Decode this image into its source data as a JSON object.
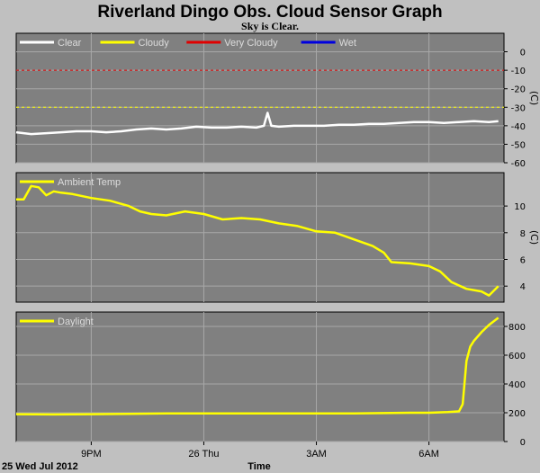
{
  "title": "Riverland Dingo Obs. Cloud Sensor Graph",
  "subtitle": "Sky is Clear.",
  "footer": {
    "date": "25 Wed Jul 2012",
    "xlabel": "Time"
  },
  "x_ticks": [
    {
      "label": "9PM",
      "t": 2.0
    },
    {
      "label": "26 Thu",
      "t": 5.0
    },
    {
      "label": "3AM",
      "t": 8.0
    },
    {
      "label": "6AM",
      "t": 11.0
    }
  ],
  "colors": {
    "plot_bg": "#808080",
    "grid": "#a8a8a8",
    "clear": "#ffffff",
    "cloudy": "#ffff00",
    "very_cloudy": "#e00000",
    "wet": "#0000e0"
  },
  "chart_data": [
    {
      "type": "line",
      "ylabel": "(C)",
      "ylim": [
        -60,
        10
      ],
      "yticks": [
        0,
        -10,
        -20,
        -30,
        -40,
        -50,
        -60
      ],
      "thresholds": [
        {
          "name": "Very Cloudy",
          "y": -10,
          "color": "#e00000"
        },
        {
          "name": "Cloudy",
          "y": -30,
          "color": "#ffff00"
        }
      ],
      "legend": [
        {
          "name": "Clear",
          "color": "#ffffff"
        },
        {
          "name": "Cloudy",
          "color": "#ffff00"
        },
        {
          "name": "Very Cloudy",
          "color": "#e00000"
        },
        {
          "name": "Wet",
          "color": "#0000e0"
        }
      ],
      "series": [
        {
          "name": "Clear",
          "color": "#ffffff",
          "x": [
            0.0,
            0.4,
            0.8,
            1.2,
            1.6,
            2.0,
            2.4,
            2.8,
            3.2,
            3.6,
            4.0,
            4.4,
            4.8,
            5.2,
            5.6,
            6.0,
            6.4,
            6.6,
            6.7,
            6.8,
            7.0,
            7.4,
            7.8,
            8.2,
            8.6,
            9.0,
            9.4,
            9.8,
            10.2,
            10.6,
            11.0,
            11.4,
            11.8,
            12.2,
            12.6,
            12.85
          ],
          "y": [
            -43.5,
            -44.5,
            -44,
            -43.5,
            -43,
            -43,
            -43.5,
            -43,
            -42,
            -41.5,
            -42,
            -41.5,
            -40.5,
            -41,
            -41,
            -40.5,
            -41,
            -40,
            -33,
            -40,
            -40.5,
            -40,
            -40,
            -40,
            -39.5,
            -39.5,
            -39,
            -39,
            -38.5,
            -38,
            -38,
            -38.5,
            -38,
            -37.5,
            -38,
            -37.5
          ]
        }
      ]
    },
    {
      "type": "line",
      "ylabel": "(C)",
      "ylim": [
        2.8,
        12.5
      ],
      "yticks": [
        10,
        8,
        6,
        4
      ],
      "legend": [
        {
          "name": "Ambient Temp",
          "color": "#ffff00"
        }
      ],
      "series": [
        {
          "name": "Ambient Temp",
          "color": "#ffff00",
          "x": [
            0.0,
            0.2,
            0.4,
            0.6,
            0.8,
            1.0,
            1.2,
            1.5,
            2.0,
            2.5,
            3.0,
            3.3,
            3.6,
            4.0,
            4.5,
            5.0,
            5.5,
            6.0,
            6.5,
            7.0,
            7.5,
            8.0,
            8.5,
            9.0,
            9.5,
            9.8,
            10.0,
            10.5,
            11.0,
            11.3,
            11.6,
            12.0,
            12.4,
            12.6,
            12.85
          ],
          "y": [
            10.5,
            10.5,
            11.5,
            11.4,
            10.8,
            11.1,
            11.0,
            10.9,
            10.6,
            10.4,
            10.0,
            9.6,
            9.4,
            9.3,
            9.6,
            9.4,
            9.0,
            9.1,
            9.0,
            8.7,
            8.5,
            8.1,
            8.0,
            7.5,
            7.0,
            6.5,
            5.8,
            5.7,
            5.5,
            5.1,
            4.3,
            3.8,
            3.6,
            3.3,
            4.0
          ]
        }
      ]
    },
    {
      "type": "line",
      "ylabel": "",
      "ylim": [
        0,
        900
      ],
      "yticks": [
        800,
        600,
        400,
        200,
        0
      ],
      "legend": [
        {
          "name": "Daylight",
          "color": "#ffff00"
        }
      ],
      "series": [
        {
          "name": "Daylight",
          "color": "#ffff00",
          "x": [
            0.0,
            1.0,
            2.0,
            3.0,
            4.0,
            5.0,
            6.0,
            7.0,
            8.0,
            9.0,
            10.0,
            10.5,
            11.0,
            11.5,
            11.8,
            11.9,
            12.0,
            12.1,
            12.2,
            12.4,
            12.6,
            12.85
          ],
          "y": [
            190,
            188,
            190,
            192,
            195,
            195,
            195,
            195,
            195,
            195,
            198,
            200,
            200,
            205,
            210,
            260,
            560,
            660,
            700,
            760,
            810,
            860
          ]
        }
      ]
    }
  ]
}
